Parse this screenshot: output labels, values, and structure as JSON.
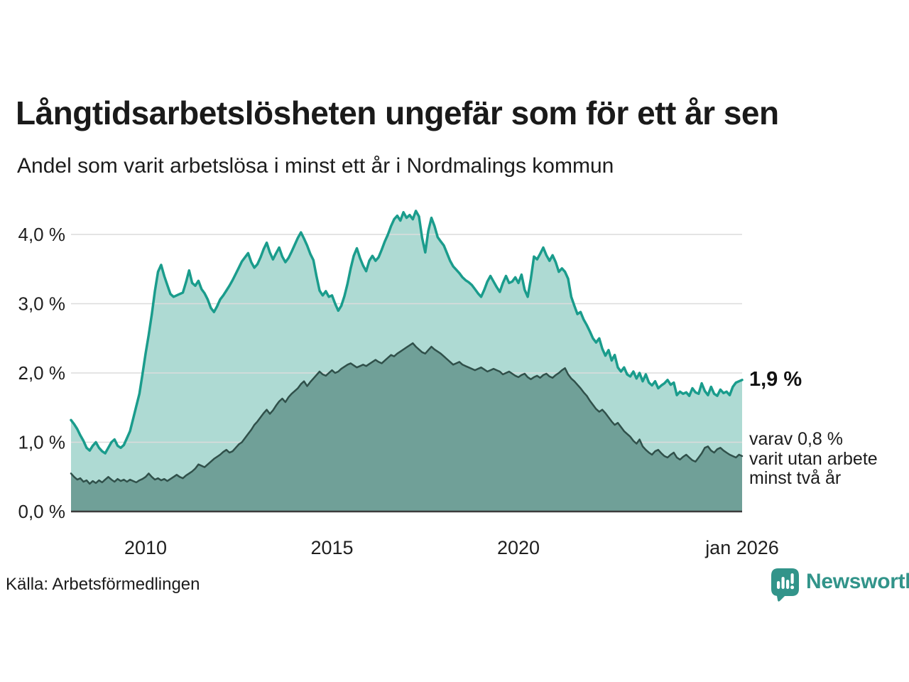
{
  "header": {
    "title": "Långtidsarbetslösheten ungefär som för ett år sen",
    "subtitle": "Andel som varit arbetslösa i minst ett år i Nordmalings kommun"
  },
  "chart_data": {
    "type": "area",
    "title": "Långtidsarbetslösheten ungefär som för ett år sen",
    "xlabel": "",
    "ylabel": "",
    "x_range": [
      2008.0,
      2026.0
    ],
    "x_start": 2008.0,
    "step_months": 1,
    "ylim": [
      0,
      4.5
    ],
    "grid": true,
    "legend": "none",
    "y_ticks": [
      {
        "value": 0.0,
        "label": "0,0 %"
      },
      {
        "value": 1.0,
        "label": "1,0 %"
      },
      {
        "value": 2.0,
        "label": "2,0 %"
      },
      {
        "value": 3.0,
        "label": "3,0 %"
      },
      {
        "value": 4.0,
        "label": "4,0 %"
      }
    ],
    "x_ticks": [
      {
        "value": 2010.0,
        "label": "2010"
      },
      {
        "value": 2015.0,
        "label": "2015"
      },
      {
        "value": 2020.0,
        "label": "2020"
      },
      {
        "value": 2026.0,
        "label": "jan 2026"
      }
    ],
    "series": [
      {
        "name": "Andel arbetslösa minst ett år",
        "color": "#1a9c8c",
        "fill": "#aedad3",
        "stroke_width": 3.5,
        "latest_label": "1,9 %",
        "values": [
          1.32,
          1.26,
          1.19,
          1.1,
          1.02,
          0.92,
          0.88,
          0.95,
          1.0,
          0.92,
          0.87,
          0.84,
          0.92,
          1.0,
          1.04,
          0.95,
          0.92,
          0.96,
          1.06,
          1.16,
          1.34,
          1.52,
          1.7,
          1.98,
          2.28,
          2.55,
          2.85,
          3.18,
          3.46,
          3.56,
          3.4,
          3.27,
          3.14,
          3.1,
          3.12,
          3.14,
          3.16,
          3.31,
          3.48,
          3.3,
          3.26,
          3.33,
          3.21,
          3.15,
          3.06,
          2.94,
          2.88,
          2.96,
          3.06,
          3.12,
          3.19,
          3.26,
          3.34,
          3.43,
          3.52,
          3.61,
          3.67,
          3.73,
          3.6,
          3.52,
          3.57,
          3.67,
          3.79,
          3.88,
          3.74,
          3.64,
          3.73,
          3.81,
          3.68,
          3.6,
          3.66,
          3.75,
          3.85,
          3.95,
          4.03,
          3.94,
          3.84,
          3.72,
          3.63,
          3.4,
          3.19,
          3.12,
          3.18,
          3.1,
          3.12,
          3.0,
          2.9,
          2.97,
          3.11,
          3.29,
          3.51,
          3.69,
          3.8,
          3.66,
          3.55,
          3.47,
          3.62,
          3.69,
          3.62,
          3.67,
          3.78,
          3.9,
          4.0,
          4.12,
          4.22,
          4.27,
          4.2,
          4.32,
          4.24,
          4.28,
          4.22,
          4.34,
          4.26,
          3.95,
          3.74,
          4.05,
          4.24,
          4.12,
          3.96,
          3.9,
          3.84,
          3.73,
          3.62,
          3.54,
          3.49,
          3.44,
          3.38,
          3.34,
          3.31,
          3.27,
          3.21,
          3.15,
          3.1,
          3.2,
          3.32,
          3.4,
          3.32,
          3.24,
          3.17,
          3.3,
          3.4,
          3.3,
          3.32,
          3.38,
          3.3,
          3.42,
          3.2,
          3.1,
          3.36,
          3.68,
          3.64,
          3.72,
          3.81,
          3.7,
          3.62,
          3.7,
          3.6,
          3.46,
          3.51,
          3.46,
          3.36,
          3.1,
          2.97,
          2.85,
          2.88,
          2.77,
          2.69,
          2.6,
          2.5,
          2.44,
          2.5,
          2.35,
          2.25,
          2.33,
          2.18,
          2.26,
          2.08,
          2.02,
          2.08,
          1.98,
          1.95,
          2.02,
          1.92,
          2.0,
          1.88,
          1.98,
          1.86,
          1.82,
          1.88,
          1.78,
          1.82,
          1.85,
          1.9,
          1.83,
          1.86,
          1.68,
          1.73,
          1.7,
          1.72,
          1.67,
          1.78,
          1.72,
          1.7,
          1.85,
          1.74,
          1.68,
          1.8,
          1.7,
          1.67,
          1.76,
          1.71,
          1.73,
          1.68,
          1.8,
          1.86,
          1.88,
          1.9
        ]
      },
      {
        "name": "Varav varit utan arbete minst två år",
        "color": "#30504a",
        "fill": "#70a098",
        "stroke_width": 2.5,
        "latest_label": "0,8 %",
        "values": [
          0.55,
          0.5,
          0.46,
          0.48,
          0.43,
          0.45,
          0.4,
          0.44,
          0.41,
          0.45,
          0.42,
          0.46,
          0.5,
          0.46,
          0.43,
          0.47,
          0.44,
          0.46,
          0.43,
          0.46,
          0.44,
          0.42,
          0.45,
          0.47,
          0.5,
          0.55,
          0.5,
          0.46,
          0.48,
          0.45,
          0.47,
          0.44,
          0.47,
          0.5,
          0.53,
          0.5,
          0.48,
          0.52,
          0.55,
          0.58,
          0.62,
          0.68,
          0.66,
          0.64,
          0.68,
          0.72,
          0.76,
          0.79,
          0.82,
          0.86,
          0.89,
          0.85,
          0.87,
          0.92,
          0.97,
          1.0,
          1.06,
          1.12,
          1.18,
          1.25,
          1.3,
          1.36,
          1.42,
          1.47,
          1.41,
          1.46,
          1.53,
          1.59,
          1.63,
          1.58,
          1.65,
          1.7,
          1.74,
          1.78,
          1.84,
          1.88,
          1.81,
          1.87,
          1.92,
          1.97,
          2.02,
          1.98,
          1.96,
          2.0,
          2.04,
          2.0,
          2.02,
          2.06,
          2.09,
          2.12,
          2.14,
          2.11,
          2.08,
          2.1,
          2.12,
          2.1,
          2.13,
          2.16,
          2.19,
          2.16,
          2.14,
          2.18,
          2.22,
          2.26,
          2.24,
          2.28,
          2.31,
          2.34,
          2.37,
          2.4,
          2.43,
          2.38,
          2.34,
          2.3,
          2.28,
          2.33,
          2.38,
          2.34,
          2.31,
          2.28,
          2.24,
          2.2,
          2.16,
          2.12,
          2.14,
          2.16,
          2.12,
          2.1,
          2.08,
          2.06,
          2.04,
          2.06,
          2.08,
          2.05,
          2.02,
          2.04,
          2.06,
          2.04,
          2.02,
          1.98,
          2.0,
          2.02,
          1.99,
          1.96,
          1.94,
          1.97,
          1.99,
          1.94,
          1.91,
          1.94,
          1.96,
          1.93,
          1.97,
          1.99,
          1.95,
          1.93,
          1.97,
          2.0,
          2.04,
          2.07,
          1.98,
          1.92,
          1.88,
          1.83,
          1.78,
          1.72,
          1.67,
          1.6,
          1.54,
          1.48,
          1.44,
          1.47,
          1.42,
          1.36,
          1.3,
          1.25,
          1.28,
          1.22,
          1.16,
          1.12,
          1.08,
          1.02,
          0.98,
          1.04,
          0.94,
          0.89,
          0.85,
          0.82,
          0.87,
          0.89,
          0.84,
          0.8,
          0.78,
          0.82,
          0.85,
          0.78,
          0.75,
          0.79,
          0.82,
          0.78,
          0.74,
          0.72,
          0.78,
          0.84,
          0.92,
          0.94,
          0.88,
          0.85,
          0.9,
          0.92,
          0.88,
          0.85,
          0.82,
          0.8,
          0.78,
          0.82,
          0.8
        ]
      }
    ]
  },
  "callout": {
    "value": "1,9 %",
    "detail": [
      "varav 0,8 %",
      "varit utan arbete",
      "minst två år"
    ]
  },
  "footer": {
    "source": "Källa: Arbetsförmedlingen",
    "brand": "Newsworthy"
  },
  "colors": {
    "accent_teal": "#1a9c8c",
    "light_fill": "#aedad3",
    "dark_line": "#30504a",
    "dark_fill": "#70a098",
    "grid": "#dcdcdc",
    "axis": "#3c3c3c",
    "text": "#1f1f1f",
    "brand": "#32948a"
  }
}
